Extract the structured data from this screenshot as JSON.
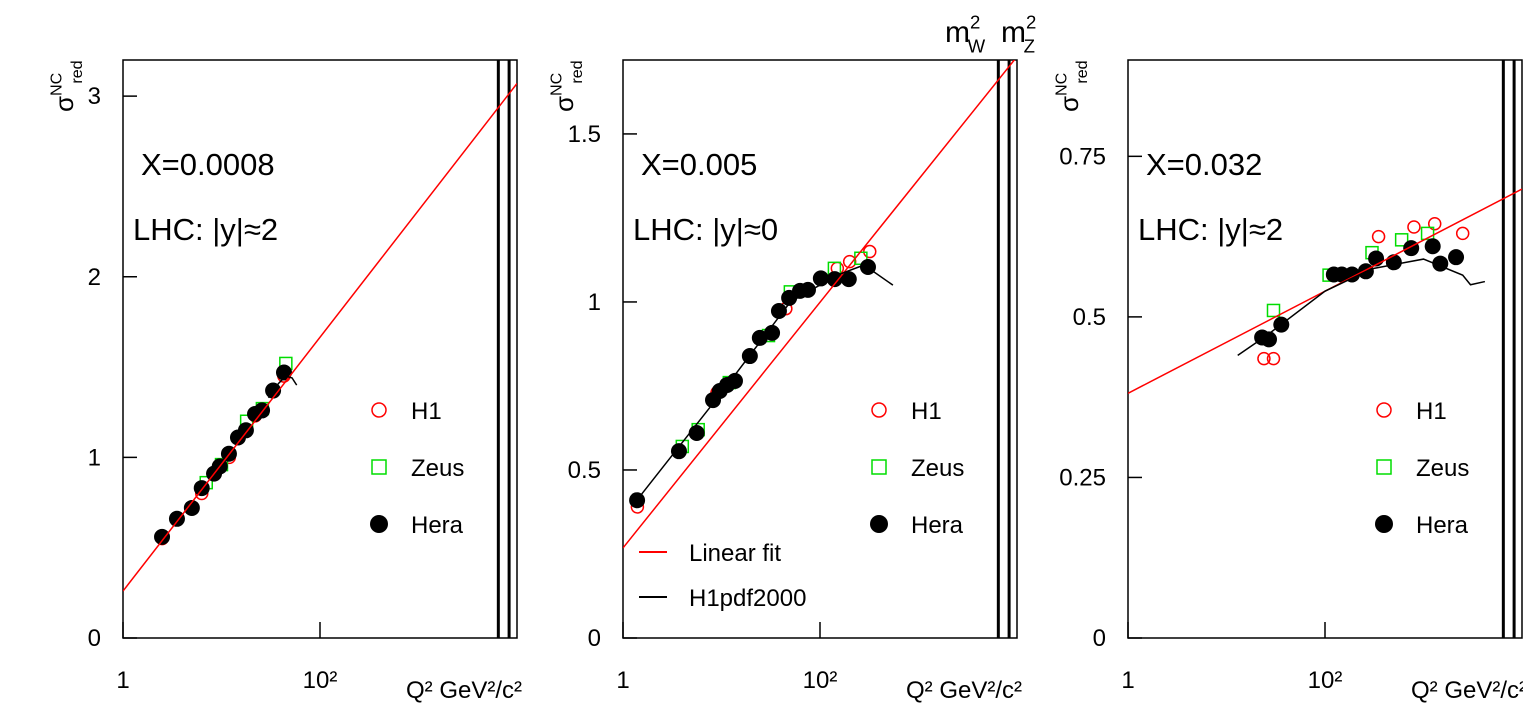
{
  "chart_data": [
    {
      "type": "scatter",
      "xscale": "log",
      "xlim": [
        1,
        10000
      ],
      "ylim": [
        0,
        3.2
      ],
      "xticks": [
        1,
        {
          "value": 100,
          "label": "10²"
        }
      ],
      "yticks": [
        0,
        1,
        2,
        3
      ],
      "x_label": "Q² GeV²/c²",
      "y_label": {
        "base": "σ",
        "sup": "NC",
        "sub": "red"
      },
      "annotations": [
        "X=0.0008",
        "LHC: |y|≈2"
      ],
      "legend": "right",
      "vlines": [
        6464,
        8315
      ],
      "series": [
        {
          "name": "H1",
          "color": "#ff0000",
          "style": "open-circle",
          "x": [
            2.5,
            6.3,
            12,
            22,
            43
          ],
          "values": [
            0.55,
            0.8,
            1.0,
            1.23,
            1.45
          ]
        },
        {
          "name": "Zeus",
          "color": "#00dd00",
          "style": "open-square",
          "x": [
            7,
            10,
            18,
            26,
            45
          ],
          "values": [
            0.86,
            0.96,
            1.2,
            1.27,
            1.52
          ]
        },
        {
          "name": "Hera",
          "color": "#000000",
          "style": "filled-circle",
          "x": [
            2.49,
            3.53,
            5.0,
            6.3,
            8.4,
            9.6,
            11.9,
            14.7,
            17.7,
            21.9,
            25.8,
            33.4,
            43.1
          ],
          "values": [
            0.56,
            0.66,
            0.72,
            0.83,
            0.91,
            0.95,
            1.02,
            1.11,
            1.15,
            1.24,
            1.26,
            1.37,
            1.47
          ]
        },
        {
          "color": "#ff0000",
          "style": "line",
          "x": [
            1,
            10000
          ],
          "values": [
            0.26,
            3.07
          ]
        },
        {
          "color": "#000000",
          "style": "line",
          "x": [
            30,
            38,
            45,
            52,
            58
          ],
          "values": [
            1.33,
            1.41,
            1.45,
            1.44,
            1.4
          ]
        }
      ]
    },
    {
      "type": "scatter",
      "xscale": "log",
      "xlim": [
        1,
        10000
      ],
      "ylim": [
        0,
        1.72
      ],
      "xticks": [
        1,
        {
          "value": 100,
          "label": "10²"
        }
      ],
      "yticks": [
        0,
        0.5,
        1,
        1.5
      ],
      "x_label": "Q² GeV²/c²",
      "y_label": {
        "base": "σ",
        "sup": "NC",
        "sub": "red"
      },
      "annotations": [
        "X=0.005",
        "LHC: |y|≈0"
      ],
      "legend": "right",
      "vlines": [
        6464,
        8315
      ],
      "vline_labels": [
        {
          "base": "m",
          "sup": "2",
          "sub": "W"
        },
        {
          "base": "m",
          "sup": "2",
          "sub": "Z"
        }
      ],
      "series": [
        {
          "name": "H1",
          "color": "#ff0000",
          "style": "open-circle",
          "x": [
            1.4,
            9,
            45,
            150,
            200,
            320
          ],
          "values": [
            0.39,
            0.73,
            0.98,
            1.1,
            1.12,
            1.15
          ]
        },
        {
          "name": "Zeus",
          "color": "#00dd00",
          "style": "open-square",
          "x": [
            4,
            5.8,
            12,
            30,
            50,
            140,
            260
          ],
          "values": [
            0.57,
            0.62,
            0.76,
            0.9,
            1.03,
            1.1,
            1.13
          ]
        },
        {
          "name": "Hera",
          "color": "#000000",
          "style": "filled-circle",
          "x": [
            1.39,
            3.7,
            5.6,
            8.2,
            9.6,
            11.4,
            13.7,
            19.4,
            24.5,
            32.6,
            38.3,
            48.6,
            62.7,
            75.5,
            102,
            141,
            196,
            307
          ],
          "values": [
            0.41,
            0.556,
            0.61,
            0.708,
            0.735,
            0.753,
            0.765,
            0.839,
            0.893,
            0.908,
            0.973,
            1.012,
            1.033,
            1.036,
            1.07,
            1.068,
            1.068,
            1.104
          ]
        },
        {
          "name": "Linear fit",
          "color": "#ff0000",
          "style": "line",
          "x": [
            1,
            10000
          ],
          "values": [
            0.268,
            1.73
          ]
        },
        {
          "name": "H1pdf2000",
          "color": "#000000",
          "style": "line",
          "x": [
            1.3,
            10,
            50,
            150,
            280,
            550
          ],
          "values": [
            0.4,
            0.73,
            1.0,
            1.08,
            1.11,
            1.05
          ]
        }
      ]
    },
    {
      "type": "scatter",
      "xscale": "log",
      "xlim": [
        1,
        10000
      ],
      "ylim": [
        0,
        0.9
      ],
      "xticks": [
        1,
        {
          "value": 100,
          "label": "10²"
        }
      ],
      "yticks": [
        0,
        0.25,
        0.5,
        0.75
      ],
      "x_label": "Q² GeV²/c²",
      "y_label": {
        "base": "σ",
        "sup": "NC",
        "sub": "red"
      },
      "annotations": [
        "X=0.032",
        "LHC: |y|≈2"
      ],
      "legend": "right",
      "vlines": [
        6464,
        8315
      ],
      "series": [
        {
          "name": "H1",
          "color": "#ff0000",
          "style": "open-circle",
          "x": [
            24,
            30,
            120,
            350,
            800,
            1300,
            2500
          ],
          "values": [
            0.435,
            0.435,
            0.565,
            0.625,
            0.64,
            0.645,
            0.63
          ]
        },
        {
          "name": "Zeus",
          "color": "#00dd00",
          "style": "open-square",
          "x": [
            30,
            110,
            300,
            600,
            1100
          ],
          "values": [
            0.51,
            0.565,
            0.6,
            0.62,
            0.63
          ]
        },
        {
          "name": "Hera",
          "color": "#000000",
          "style": "filled-circle",
          "x": [
            23,
            27,
            36,
            123,
            148,
            188,
            260,
            330,
            500,
            750,
            1240,
            1480,
            2140
          ],
          "values": [
            0.468,
            0.465,
            0.488,
            0.566,
            0.566,
            0.566,
            0.571,
            0.591,
            0.585,
            0.607,
            0.61,
            0.583,
            0.593
          ]
        },
        {
          "color": "#ff0000",
          "style": "line",
          "x": [
            1,
            10000
          ],
          "values": [
            0.381,
            0.699
          ]
        },
        {
          "color": "#000000",
          "style": "line",
          "x": [
            13,
            25,
            100,
            300,
            1000,
            2500,
            3000,
            4200
          ],
          "values": [
            0.44,
            0.47,
            0.54,
            0.575,
            0.59,
            0.565,
            0.55,
            0.555
          ]
        }
      ]
    }
  ]
}
